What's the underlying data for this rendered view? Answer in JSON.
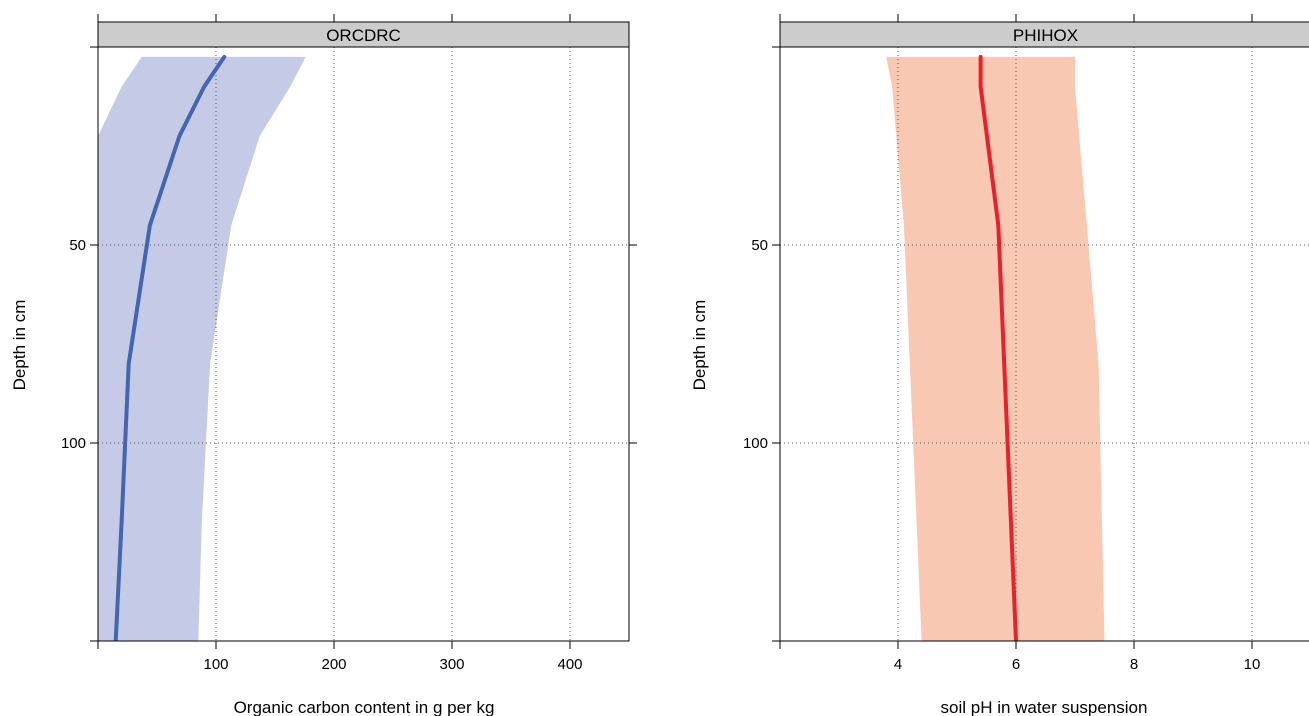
{
  "chart_data": [
    {
      "type": "area",
      "strip_title": "ORCDRC",
      "xlabel": "Organic carbon content in g per kg",
      "ylabel": "Depth in cm",
      "xlim": [
        0,
        450
      ],
      "ylim": [
        150,
        0
      ],
      "x_ticks": [
        100,
        200,
        300,
        400
      ],
      "y_ticks": [
        50,
        100
      ],
      "x_tick_labels": [
        "100",
        "200",
        "300",
        "400"
      ],
      "y_tick_labels": [
        "50",
        "100"
      ],
      "grid": true,
      "depth": [
        2.5,
        10,
        22.5,
        45,
        80,
        120,
        150
      ],
      "mean": [
        107,
        90,
        69,
        44,
        26,
        20,
        15
      ],
      "lower": [
        37,
        20,
        0,
        0,
        0,
        0,
        0
      ],
      "upper": [
        176,
        163,
        137,
        113,
        95,
        88,
        85
      ],
      "colors": {
        "line": "#4466b0",
        "band": "#c5cae6"
      }
    },
    {
      "type": "area",
      "strip_title": "PHIHOX",
      "xlabel": "soil pH in water suspension",
      "ylabel": "Depth in cm",
      "xlim": [
        2,
        11
      ],
      "ylim": [
        150,
        0
      ],
      "x_ticks": [
        4,
        6,
        8,
        10
      ],
      "y_ticks": [
        50,
        100
      ],
      "x_tick_labels": [
        "4",
        "6",
        "8",
        "10"
      ],
      "y_tick_labels": [
        "50",
        "100"
      ],
      "grid": true,
      "depth": [
        2.5,
        10,
        45,
        80,
        150
      ],
      "mean": [
        5.4,
        5.4,
        5.7,
        5.8,
        6.0
      ],
      "lower": [
        3.8,
        3.9,
        4.1,
        4.2,
        4.4
      ],
      "upper": [
        7.0,
        7.0,
        7.2,
        7.4,
        7.5
      ],
      "colors": {
        "line": "#e8212b",
        "band": "#f9c8b3"
      }
    }
  ]
}
